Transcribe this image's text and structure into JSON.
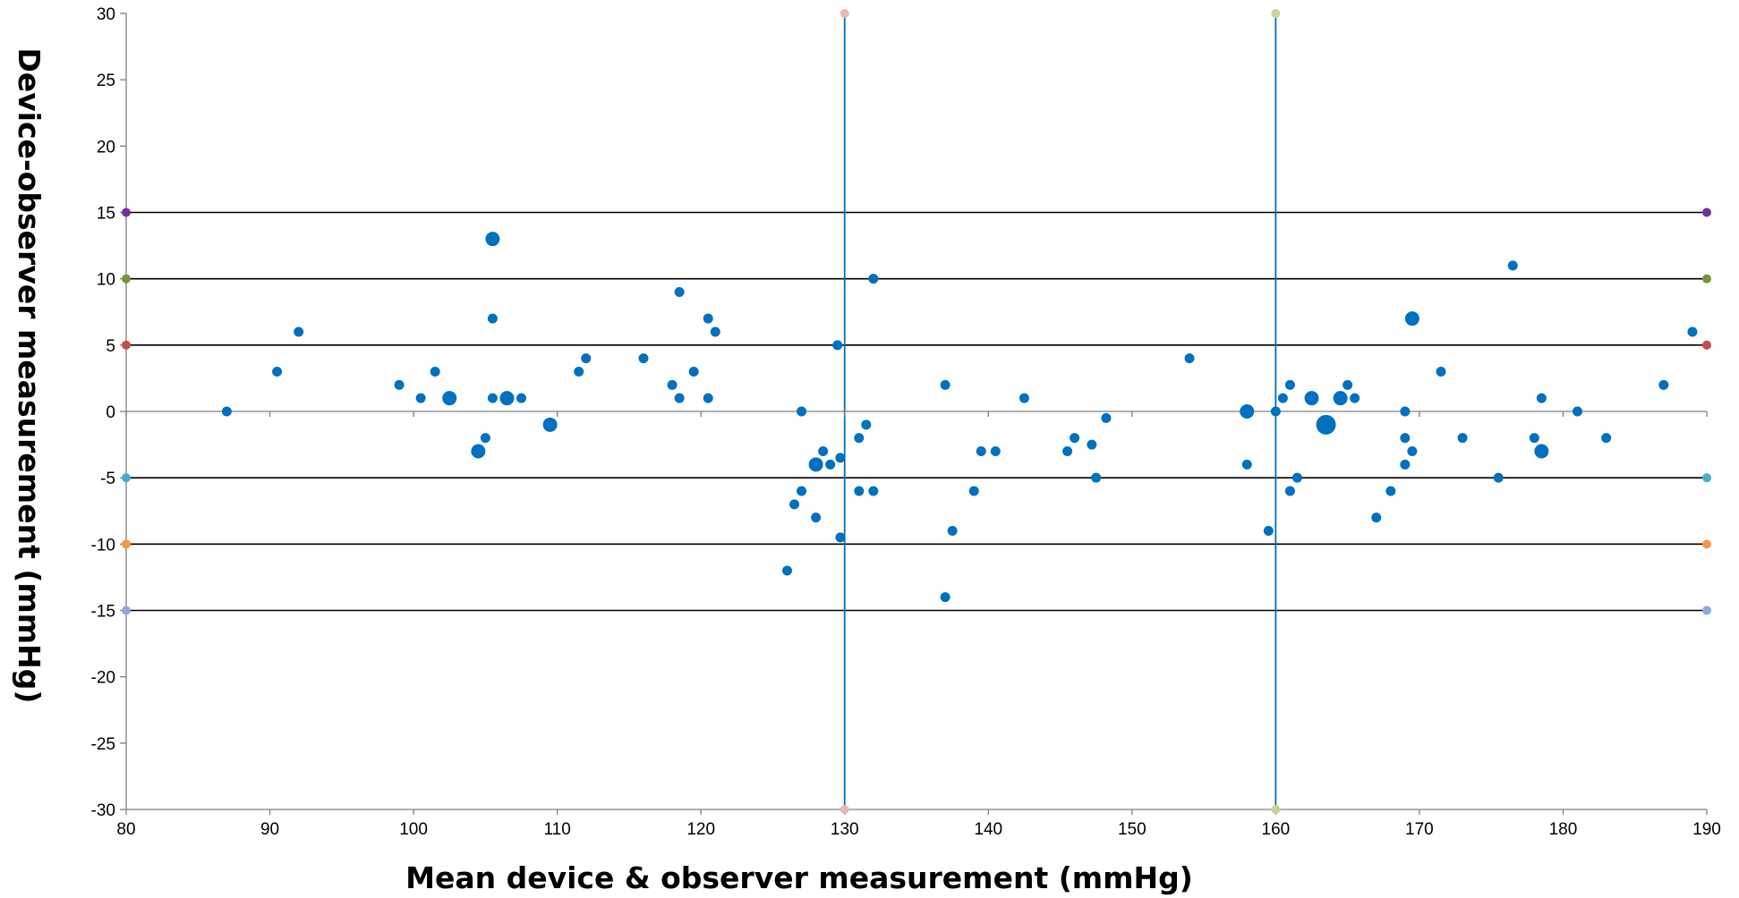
{
  "chart_data": {
    "type": "scatter",
    "xlabel": "Mean device & observer measurement (mmHg)",
    "ylabel": "Device-observer measurement (mmHg)",
    "xlim": [
      80,
      190
    ],
    "ylim": [
      -30,
      30
    ],
    "xticks": [
      80,
      90,
      100,
      110,
      120,
      130,
      140,
      150,
      160,
      170,
      180,
      190
    ],
    "yticks": [
      30,
      25,
      20,
      15,
      10,
      5,
      0,
      -5,
      -10,
      -15,
      -20,
      -25,
      -30
    ],
    "grid": false,
    "legend": "none",
    "colors": {
      "points": "#0070C0",
      "vertical_lines": "#0070C0",
      "horizontal_lines": "#000000",
      "axis": "#7F7F7F"
    },
    "horizontal_reference_lines": [
      {
        "y": 15,
        "end_marker_color": "#7030A0"
      },
      {
        "y": 10,
        "end_marker_color": "#77933C"
      },
      {
        "y": 5,
        "end_marker_color": "#C0504D"
      },
      {
        "y": -5,
        "end_marker_color": "#4BACC6"
      },
      {
        "y": -10,
        "end_marker_color": "#F79646"
      },
      {
        "y": -15,
        "end_marker_color": "#8EA9DB"
      }
    ],
    "vertical_reference_lines": [
      {
        "x": 130,
        "end_marker_color": "#E6B8B7"
      },
      {
        "x": 160,
        "end_marker_color": "#C4D79B"
      }
    ],
    "points": [
      {
        "x": 87,
        "y": 0,
        "s": 1
      },
      {
        "x": 90.5,
        "y": 3,
        "s": 1
      },
      {
        "x": 92,
        "y": 6,
        "s": 1
      },
      {
        "x": 99,
        "y": 2,
        "s": 1
      },
      {
        "x": 100.5,
        "y": 1,
        "s": 1
      },
      {
        "x": 101.5,
        "y": 3,
        "s": 1
      },
      {
        "x": 102.5,
        "y": 1,
        "s": 2
      },
      {
        "x": 104.5,
        "y": -3,
        "s": 2
      },
      {
        "x": 105,
        "y": -2,
        "s": 1
      },
      {
        "x": 105.5,
        "y": 13,
        "s": 2
      },
      {
        "x": 105.5,
        "y": 7,
        "s": 1
      },
      {
        "x": 105.5,
        "y": 1,
        "s": 1
      },
      {
        "x": 106.5,
        "y": 1,
        "s": 2
      },
      {
        "x": 107.5,
        "y": 1,
        "s": 1
      },
      {
        "x": 109.5,
        "y": -1,
        "s": 2
      },
      {
        "x": 111.5,
        "y": 3,
        "s": 1
      },
      {
        "x": 112,
        "y": 4,
        "s": 1
      },
      {
        "x": 116,
        "y": 4,
        "s": 1
      },
      {
        "x": 118,
        "y": 2,
        "s": 1
      },
      {
        "x": 118.5,
        "y": 9,
        "s": 1
      },
      {
        "x": 118.5,
        "y": 1,
        "s": 1
      },
      {
        "x": 119.5,
        "y": 3,
        "s": 1
      },
      {
        "x": 120.5,
        "y": 7,
        "s": 1
      },
      {
        "x": 120.5,
        "y": 1,
        "s": 1
      },
      {
        "x": 121,
        "y": 6,
        "s": 1
      },
      {
        "x": 126,
        "y": -12,
        "s": 1
      },
      {
        "x": 126.5,
        "y": -7,
        "s": 1
      },
      {
        "x": 127,
        "y": 0,
        "s": 1
      },
      {
        "x": 127,
        "y": -6,
        "s": 1
      },
      {
        "x": 128,
        "y": -4,
        "s": 2
      },
      {
        "x": 128,
        "y": -8,
        "s": 1
      },
      {
        "x": 128.5,
        "y": -3,
        "s": 1
      },
      {
        "x": 129,
        "y": -4,
        "s": 1
      },
      {
        "x": 129.5,
        "y": 5,
        "s": 1
      },
      {
        "x": 129.7,
        "y": -3.5,
        "s": 1
      },
      {
        "x": 129.7,
        "y": -9.5,
        "s": 1
      },
      {
        "x": 131,
        "y": -2,
        "s": 1
      },
      {
        "x": 131,
        "y": -6,
        "s": 1
      },
      {
        "x": 131.5,
        "y": -1,
        "s": 1
      },
      {
        "x": 132,
        "y": 10,
        "s": 1
      },
      {
        "x": 132,
        "y": -6,
        "s": 1
      },
      {
        "x": 137,
        "y": 2,
        "s": 1
      },
      {
        "x": 137,
        "y": -14,
        "s": 1
      },
      {
        "x": 137.5,
        "y": -9,
        "s": 1
      },
      {
        "x": 139,
        "y": -6,
        "s": 1
      },
      {
        "x": 139.5,
        "y": -3,
        "s": 1
      },
      {
        "x": 140.5,
        "y": -3,
        "s": 1
      },
      {
        "x": 142.5,
        "y": 1,
        "s": 1
      },
      {
        "x": 145.5,
        "y": -3,
        "s": 1
      },
      {
        "x": 146,
        "y": -2,
        "s": 1
      },
      {
        "x": 147.2,
        "y": -2.5,
        "s": 1
      },
      {
        "x": 147.5,
        "y": -5,
        "s": 1
      },
      {
        "x": 148.2,
        "y": -0.5,
        "s": 1
      },
      {
        "x": 154,
        "y": 4,
        "s": 1
      },
      {
        "x": 158,
        "y": 0,
        "s": 2
      },
      {
        "x": 158,
        "y": -4,
        "s": 1
      },
      {
        "x": 159.5,
        "y": -9,
        "s": 1
      },
      {
        "x": 160,
        "y": 0,
        "s": 1
      },
      {
        "x": 160.5,
        "y": 1,
        "s": 1
      },
      {
        "x": 161,
        "y": 2,
        "s": 1
      },
      {
        "x": 161,
        "y": -6,
        "s": 1
      },
      {
        "x": 161.5,
        "y": -5,
        "s": 1
      },
      {
        "x": 162.5,
        "y": 1,
        "s": 2
      },
      {
        "x": 163.5,
        "y": -1,
        "s": 3
      },
      {
        "x": 164.5,
        "y": 1,
        "s": 2
      },
      {
        "x": 165,
        "y": 2,
        "s": 1
      },
      {
        "x": 165.5,
        "y": 1,
        "s": 1
      },
      {
        "x": 167,
        "y": -8,
        "s": 1
      },
      {
        "x": 168,
        "y": -6,
        "s": 1
      },
      {
        "x": 169,
        "y": 0,
        "s": 1
      },
      {
        "x": 169,
        "y": -2,
        "s": 1
      },
      {
        "x": 169,
        "y": -4,
        "s": 1
      },
      {
        "x": 169.5,
        "y": 7,
        "s": 2
      },
      {
        "x": 169.5,
        "y": -3,
        "s": 1
      },
      {
        "x": 171.5,
        "y": 3,
        "s": 1
      },
      {
        "x": 173,
        "y": -2,
        "s": 1
      },
      {
        "x": 175.5,
        "y": -5,
        "s": 1
      },
      {
        "x": 176.5,
        "y": 11,
        "s": 1
      },
      {
        "x": 178,
        "y": -2,
        "s": 1
      },
      {
        "x": 178.5,
        "y": 1,
        "s": 1
      },
      {
        "x": 178.5,
        "y": -3,
        "s": 2
      },
      {
        "x": 181,
        "y": 0,
        "s": 1
      },
      {
        "x": 183,
        "y": -2,
        "s": 1
      },
      {
        "x": 187,
        "y": 2,
        "s": 1
      },
      {
        "x": 189,
        "y": 6,
        "s": 1
      }
    ]
  }
}
